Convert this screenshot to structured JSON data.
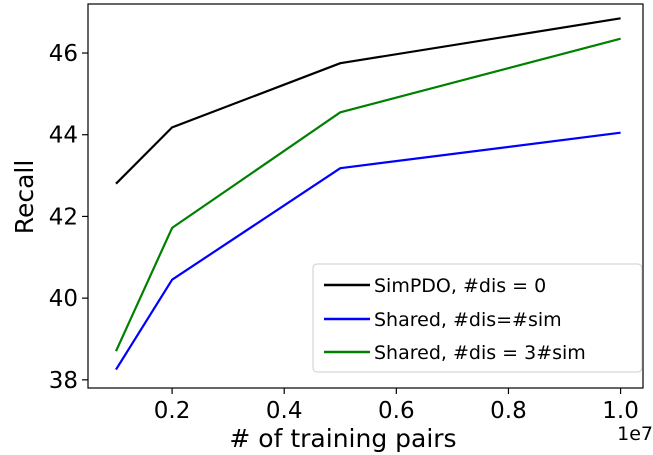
{
  "chart_data": {
    "type": "line",
    "xlabel": "# of training pairs",
    "ylabel": "Recall",
    "x_offset_label": "1e7",
    "x": [
      0.1,
      0.2,
      0.5,
      1.0
    ],
    "xlim": [
      0.05,
      1.04
    ],
    "ylim": [
      37.8,
      47.2
    ],
    "xticks": [
      0.2,
      0.4,
      0.6,
      0.8,
      1.0
    ],
    "xtick_labels": [
      "0.2",
      "0.4",
      "0.6",
      "0.8",
      "1.0"
    ],
    "yticks": [
      38,
      40,
      42,
      44,
      46
    ],
    "ytick_labels": [
      "38",
      "40",
      "42",
      "44",
      "46"
    ],
    "grid": false,
    "legend_position": "lower-right",
    "series": [
      {
        "name": "SimPDO, #dis = 0",
        "color": "#000000",
        "values": [
          42.8,
          44.18,
          45.75,
          46.85
        ]
      },
      {
        "name": "Shared, #dis=#sim",
        "color": "#0000ff",
        "values": [
          38.25,
          40.45,
          43.18,
          44.05
        ]
      },
      {
        "name": "Shared, #dis = 3#sim",
        "color": "#008000",
        "values": [
          38.7,
          41.72,
          44.55,
          46.35
        ]
      }
    ]
  }
}
